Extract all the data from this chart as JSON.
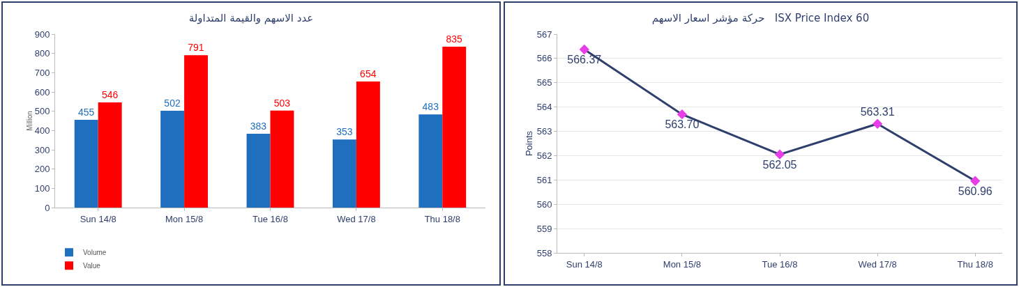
{
  "chart_data": [
    {
      "type": "bar",
      "title": "عدد الاسهم والقيمة المتداولة",
      "ylabel": "Million",
      "categories": [
        "Sun 14/8",
        "Mon 15/8",
        "Tue 16/8",
        "Wed 17/8",
        "Thu 18/8"
      ],
      "series": [
        {
          "name": "Volume",
          "color": "#1f6fbf",
          "values": [
            455,
            502,
            383,
            353,
            483
          ]
        },
        {
          "name": "Value",
          "color": "#ff0000",
          "values": [
            546,
            791,
            503,
            654,
            835
          ]
        }
      ],
      "ylim": [
        0,
        900
      ],
      "yticks": [
        0,
        100,
        200,
        300,
        400,
        500,
        600,
        700,
        800,
        900
      ],
      "grid": false,
      "legend": "bottom left",
      "data_labels": true
    },
    {
      "type": "line",
      "title": "حركة مؤشر اسعار الاسهم   ISX Price Index 60",
      "ylabel": "Points",
      "categories": [
        "Sun 14/8",
        "Mon 15/8",
        "Tue 16/8",
        "Wed 17/8",
        "Thu 18/8"
      ],
      "series": [
        {
          "color": "#2e3f6e",
          "colors": [
            "#e83ee8",
            "#e83ee8",
            "#e83ee8",
            "#e83ee8",
            "#e83ee8"
          ],
          "values": [
            566.37,
            563.7,
            562.05,
            563.31,
            560.96
          ]
        }
      ],
      "value_labels": [
        "566.37",
        "563.70",
        "562.05",
        "563.31",
        "560.96"
      ],
      "ylim": [
        558,
        567
      ],
      "yticks": [
        558,
        559,
        560,
        561,
        562,
        563,
        564,
        565,
        566,
        567
      ],
      "grid": "y",
      "legend": false,
      "marker": "diamond",
      "line_style": "solid"
    }
  ]
}
